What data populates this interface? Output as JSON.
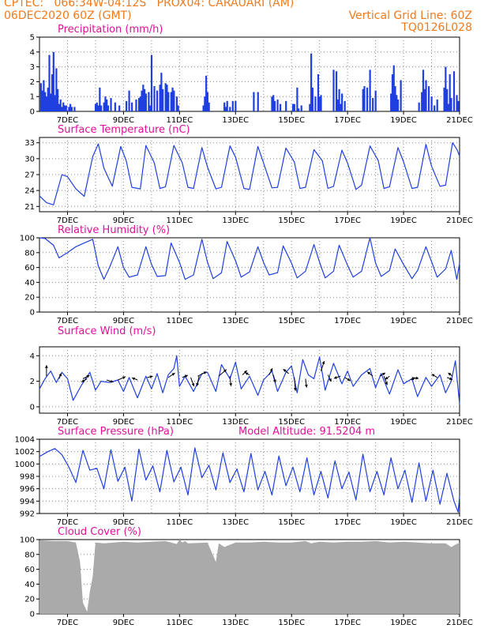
{
  "header": {
    "line1": "CPTEC:   066:34W-04:12S   PROX04: CARAUARI (AM)",
    "line2": "06DEC2020 60Z (GMT)",
    "grid_note": "Vertical Grid Line: 60Z",
    "code": "TQ0126L028"
  },
  "colors": {
    "header": "#f07a1e",
    "title": "#e0109a",
    "series": "#1f3fe0",
    "cloud": "#aaaaaa",
    "arrow": "#000000"
  },
  "model_altitude_label": "Model Altitude: 91.5204 m",
  "x_axis": {
    "start_day": 6,
    "end_day": 21,
    "tick_days": [
      7,
      9,
      11,
      13,
      15,
      17,
      19,
      21
    ],
    "tick_labels": [
      "7DEC",
      "9DEC",
      "11DEC",
      "13DEC",
      "15DEC",
      "17DEC",
      "19DEC",
      "21DEC"
    ]
  },
  "chart_data": [
    {
      "id": "precip",
      "type": "bar",
      "title": "Precipitation (mm/h)",
      "ylim": [
        0,
        5
      ],
      "yticks": [
        0,
        1,
        2,
        3,
        4,
        5
      ],
      "grid": true,
      "x": [
        6.05,
        6.1,
        6.15,
        6.2,
        6.25,
        6.3,
        6.35,
        6.4,
        6.45,
        6.5,
        6.55,
        6.6,
        6.65,
        6.7,
        6.75,
        6.8,
        6.85,
        6.9,
        6.95,
        7.05,
        7.1,
        7.15,
        7.25,
        8.0,
        8.05,
        8.1,
        8.15,
        8.2,
        8.3,
        8.35,
        8.4,
        8.45,
        8.55,
        8.7,
        8.85,
        9.1,
        9.2,
        9.3,
        9.45,
        9.55,
        9.6,
        9.65,
        9.7,
        9.75,
        9.8,
        9.9,
        9.95,
        10.0,
        10.1,
        10.2,
        10.3,
        10.35,
        10.4,
        10.5,
        10.55,
        10.6,
        10.7,
        10.75,
        10.8,
        10.9,
        10.95,
        11.85,
        11.9,
        11.95,
        12.0,
        12.05,
        12.6,
        12.65,
        12.7,
        12.8,
        12.9,
        13.0,
        13.65,
        13.8,
        14.3,
        14.35,
        14.4,
        14.5,
        14.6,
        14.8,
        15.05,
        15.1,
        15.2,
        15.25,
        15.35,
        15.65,
        15.7,
        15.75,
        15.85,
        15.95,
        16.0,
        16.05,
        16.5,
        16.6,
        16.65,
        16.7,
        16.75,
        16.8,
        16.9,
        17.55,
        17.6,
        17.7,
        17.8,
        17.9,
        18.0,
        18.55,
        18.6,
        18.65,
        18.7,
        18.75,
        18.8,
        18.9,
        19.55,
        19.65,
        19.7,
        19.75,
        19.8,
        19.9,
        20.0,
        20.1,
        20.2,
        20.45,
        20.5,
        20.55,
        20.6,
        20.65,
        20.7,
        20.8,
        20.9,
        20.95
      ],
      "y": [
        1.9,
        1.4,
        2.1,
        1.3,
        1.0,
        1.6,
        3.8,
        1.2,
        2.5,
        4.0,
        1.1,
        2.9,
        1.5,
        0.5,
        0.8,
        0.3,
        0.6,
        0.4,
        0.4,
        0.3,
        0.5,
        0.3,
        0.3,
        0.5,
        0.6,
        0.4,
        1.6,
        0.4,
        0.6,
        1.0,
        0.8,
        0.4,
        0.9,
        0.6,
        0.4,
        0.7,
        1.4,
        0.6,
        0.8,
        0.9,
        1.0,
        1.4,
        1.8,
        1.5,
        1.2,
        1.3,
        0.4,
        3.8,
        1.7,
        1.4,
        1.8,
        2.6,
        1.5,
        1.9,
        1.8,
        1.3,
        1.3,
        1.6,
        1.4,
        1.0,
        0.4,
        0.4,
        1.0,
        2.4,
        1.3,
        0.6,
        0.6,
        0.3,
        0.7,
        0.3,
        0.7,
        0.7,
        1.3,
        1.3,
        1.0,
        1.1,
        0.7,
        0.8,
        0.5,
        0.7,
        0.5,
        0.5,
        1.6,
        0.2,
        0.4,
        0.5,
        3.9,
        1.6,
        1.0,
        2.5,
        1.0,
        1.1,
        2.8,
        2.7,
        0.8,
        1.5,
        0.5,
        1.2,
        0.7,
        1.5,
        1.7,
        1.6,
        2.8,
        0.9,
        1.4,
        1.2,
        2.5,
        3.1,
        1.7,
        1.1,
        0.8,
        2.1,
        0.6,
        1.3,
        2.8,
        1.5,
        2.1,
        1.7,
        1.0,
        0.4,
        0.8,
        1.6,
        3.0,
        1.5,
        0.5,
        2.5,
        0.9,
        2.7,
        1.1,
        0.7
      ]
    },
    {
      "id": "temp",
      "type": "line",
      "title": "Surface Temperature (nC)",
      "ylim": [
        20,
        34
      ],
      "yticks": [
        21,
        24,
        27,
        30,
        33
      ],
      "grid": true,
      "x": [
        6.0,
        6.25,
        6.5,
        6.8,
        7.0,
        7.3,
        7.6,
        7.9,
        8.1,
        8.3,
        8.6,
        8.9,
        9.1,
        9.3,
        9.6,
        9.8,
        10.1,
        10.3,
        10.5,
        10.8,
        11.1,
        11.3,
        11.5,
        11.8,
        12.0,
        12.3,
        12.5,
        12.8,
        13.0,
        13.3,
        13.5,
        13.8,
        14.0,
        14.3,
        14.5,
        14.8,
        15.1,
        15.3,
        15.5,
        15.8,
        16.1,
        16.3,
        16.5,
        16.8,
        17.0,
        17.3,
        17.5,
        17.8,
        18.1,
        18.3,
        18.5,
        18.8,
        19.0,
        19.3,
        19.5,
        19.8,
        20.0,
        20.3,
        20.5,
        20.75,
        20.9,
        21.0
      ],
      "y": [
        23.0,
        21.7,
        21.3,
        27.0,
        26.6,
        24.3,
        22.9,
        30.4,
        32.8,
        28.2,
        24.8,
        32.3,
        29.6,
        24.6,
        24.3,
        32.5,
        29.2,
        24.4,
        24.7,
        32.5,
        29.2,
        24.6,
        24.4,
        32.1,
        28.4,
        24.3,
        24.6,
        32.4,
        30.3,
        24.4,
        24.2,
        32.3,
        29.2,
        24.5,
        24.6,
        32.0,
        29.4,
        24.4,
        24.6,
        31.7,
        29.6,
        24.4,
        24.8,
        31.6,
        29.2,
        24.2,
        25.0,
        32.4,
        29.6,
        24.4,
        24.7,
        32.1,
        29.4,
        24.4,
        24.6,
        32.7,
        28.6,
        24.8,
        25.0,
        33.0,
        31.8,
        30.5
      ]
    },
    {
      "id": "rh",
      "type": "line",
      "title": "Relative Humidity (%)",
      "ylim": [
        0,
        100
      ],
      "yticks": [
        0,
        20,
        40,
        60,
        80,
        100
      ],
      "grid": true,
      "x": [
        6.0,
        6.2,
        6.5,
        6.7,
        7.0,
        7.3,
        7.6,
        7.9,
        8.1,
        8.3,
        8.5,
        8.8,
        9.0,
        9.2,
        9.5,
        9.8,
        10.0,
        10.2,
        10.5,
        10.7,
        11.0,
        11.2,
        11.5,
        11.8,
        12.0,
        12.2,
        12.5,
        12.7,
        13.0,
        13.2,
        13.5,
        13.8,
        14.0,
        14.2,
        14.5,
        14.7,
        15.0,
        15.2,
        15.5,
        15.8,
        16.0,
        16.2,
        16.5,
        16.7,
        17.0,
        17.2,
        17.5,
        17.8,
        18.0,
        18.2,
        18.5,
        18.7,
        19.0,
        19.3,
        19.5,
        19.8,
        20.0,
        20.2,
        20.5,
        20.7,
        20.9,
        21.0
      ],
      "y": [
        100,
        99,
        90,
        73,
        80,
        88,
        93,
        98,
        62,
        44,
        60,
        88,
        60,
        47,
        50,
        88,
        64,
        48,
        49,
        93,
        67,
        44,
        50,
        98,
        67,
        45,
        53,
        95,
        69,
        47,
        54,
        88,
        67,
        50,
        53,
        89,
        66,
        46,
        55,
        91,
        67,
        46,
        55,
        90,
        63,
        47,
        55,
        100,
        66,
        48,
        56,
        85,
        64,
        45,
        56,
        88,
        68,
        47,
        58,
        83,
        44,
        66
      ]
    },
    {
      "id": "wind",
      "type": "line",
      "title": "Surface Wind (m/s)",
      "ylim": [
        -0.5,
        4.7
      ],
      "yticks": [
        0,
        2,
        4
      ],
      "grid": true,
      "x": [
        6.0,
        6.2,
        6.4,
        6.6,
        6.8,
        7.0,
        7.2,
        7.5,
        7.8,
        8.0,
        8.2,
        8.5,
        8.8,
        9.0,
        9.2,
        9.5,
        9.8,
        10.0,
        10.2,
        10.4,
        10.6,
        10.8,
        10.9,
        11.0,
        11.2,
        11.5,
        11.8,
        12.0,
        12.3,
        12.5,
        12.8,
        13.0,
        13.2,
        13.5,
        13.8,
        14.0,
        14.3,
        14.5,
        14.8,
        15.0,
        15.2,
        15.4,
        15.6,
        15.8,
        16.0,
        16.2,
        16.5,
        16.8,
        17.0,
        17.2,
        17.5,
        17.8,
        18.0,
        18.2,
        18.5,
        18.8,
        19.0,
        19.3,
        19.5,
        19.8,
        20.0,
        20.3,
        20.5,
        20.7,
        20.85,
        21.0
      ],
      "y": [
        1.4,
        2.2,
        2.8,
        1.9,
        2.7,
        2.2,
        0.5,
        1.7,
        2.7,
        1.3,
        2.0,
        1.9,
        2.1,
        1.2,
        2.3,
        0.7,
        2.4,
        1.4,
        2.6,
        1.1,
        2.5,
        3.0,
        4.0,
        1.6,
        2.4,
        1.2,
        2.6,
        2.7,
        1.2,
        3.3,
        2.2,
        3.5,
        1.4,
        2.4,
        0.9,
        2.1,
        2.8,
        1.2,
        2.7,
        3.2,
        1.1,
        3.7,
        2.5,
        2.2,
        3.9,
        1.3,
        3.4,
        1.8,
        2.8,
        1.6,
        2.5,
        3.0,
        1.5,
        2.6,
        1.0,
        2.9,
        1.8,
        2.2,
        0.8,
        2.3,
        1.6,
        2.5,
        1.1,
        2.0,
        3.6,
        0.2
      ],
      "arrows": [
        {
          "x": 6.25,
          "y": 2.4,
          "u": 0.0,
          "v": 1.0
        },
        {
          "x": 6.7,
          "y": 2.2,
          "u": 0.2,
          "v": 0.5
        },
        {
          "x": 7.55,
          "y": 2.2,
          "u": 0.6,
          "v": 0.3
        },
        {
          "x": 7.7,
          "y": 2.2,
          "u": -0.5,
          "v": -0.3
        },
        {
          "x": 8.4,
          "y": 2.1,
          "u": 0.6,
          "v": -0.2
        },
        {
          "x": 8.8,
          "y": 2.1,
          "u": 0.7,
          "v": 0.3
        },
        {
          "x": 9.5,
          "y": 2.1,
          "u": -0.5,
          "v": 0.2
        },
        {
          "x": 9.85,
          "y": 2.3,
          "u": 0.5,
          "v": 0.1
        },
        {
          "x": 10.6,
          "y": 2.3,
          "u": 0.6,
          "v": 0.4
        },
        {
          "x": 11.1,
          "y": 2.3,
          "u": 0.5,
          "v": 0.2
        },
        {
          "x": 11.4,
          "y": 2.3,
          "u": 0.3,
          "v": -0.8
        },
        {
          "x": 11.65,
          "y": 2.4,
          "u": 0.8,
          "v": 0.4
        },
        {
          "x": 11.7,
          "y": 2.4,
          "u": -0.2,
          "v": -0.9
        },
        {
          "x": 12.4,
          "y": 2.4,
          "u": 0.7,
          "v": 0.6
        },
        {
          "x": 12.8,
          "y": 2.4,
          "u": 0.1,
          "v": -0.9
        },
        {
          "x": 13.25,
          "y": 2.5,
          "u": 0.4,
          "v": 0.4
        },
        {
          "x": 13.5,
          "y": 2.5,
          "u": -0.4,
          "v": 0.2
        },
        {
          "x": 14.2,
          "y": 2.5,
          "u": 0.3,
          "v": 0.6
        },
        {
          "x": 14.35,
          "y": 2.5,
          "u": 0.2,
          "v": -0.7
        },
        {
          "x": 14.9,
          "y": 2.6,
          "u": -0.5,
          "v": 0.4
        },
        {
          "x": 15.1,
          "y": 2.3,
          "u": 0.1,
          "v": -1.2
        },
        {
          "x": 15.5,
          "y": 2.2,
          "u": 0.1,
          "v": -0.8
        },
        {
          "x": 16.05,
          "y": 2.8,
          "u": 0.3,
          "v": 0.9
        },
        {
          "x": 16.3,
          "y": 2.5,
          "u": 0.3,
          "v": -0.6
        },
        {
          "x": 16.75,
          "y": 2.4,
          "u": -0.6,
          "v": -0.2
        },
        {
          "x": 16.9,
          "y": 2.3,
          "u": 0.5,
          "v": -0.3
        },
        {
          "x": 17.9,
          "y": 2.4,
          "u": -0.5,
          "v": 0.4
        },
        {
          "x": 18.15,
          "y": 2.4,
          "u": 0.5,
          "v": 0.3
        },
        {
          "x": 18.3,
          "y": 2.4,
          "u": 0.3,
          "v": -0.8
        },
        {
          "x": 18.5,
          "y": 2.4,
          "u": -0.4,
          "v": -0.3
        },
        {
          "x": 19.3,
          "y": 2.3,
          "u": 0.6,
          "v": -0.1
        },
        {
          "x": 19.5,
          "y": 2.3,
          "u": -0.6,
          "v": -0.2
        },
        {
          "x": 20.2,
          "y": 2.3,
          "u": -0.5,
          "v": 0.3
        },
        {
          "x": 20.55,
          "y": 2.3,
          "u": 0.5,
          "v": -0.2
        },
        {
          "x": 20.75,
          "y": 2.4,
          "u": -0.4,
          "v": 0.3
        }
      ]
    },
    {
      "id": "pressure",
      "type": "line",
      "title": "Surface Pressure (hPa)",
      "ylim": [
        992,
        1004
      ],
      "yticks": [
        992,
        994,
        996,
        998,
        1000,
        1002,
        1004
      ],
      "grid": true,
      "x": [
        6.0,
        6.3,
        6.55,
        6.8,
        7.05,
        7.3,
        7.55,
        7.8,
        8.05,
        8.3,
        8.55,
        8.8,
        9.05,
        9.3,
        9.55,
        9.8,
        10.05,
        10.3,
        10.55,
        10.8,
        11.05,
        11.3,
        11.55,
        11.8,
        12.05,
        12.3,
        12.55,
        12.8,
        13.05,
        13.3,
        13.55,
        13.8,
        14.05,
        14.3,
        14.55,
        14.8,
        15.05,
        15.3,
        15.55,
        15.8,
        16.05,
        16.3,
        16.55,
        16.8,
        17.05,
        17.3,
        17.55,
        17.8,
        18.05,
        18.3,
        18.55,
        18.8,
        19.05,
        19.3,
        19.55,
        19.8,
        20.05,
        20.3,
        20.55,
        20.8,
        20.95,
        21.0
      ],
      "y": [
        1001.2,
        1002.0,
        1002.5,
        1001.5,
        999.5,
        997.0,
        1002.2,
        999.0,
        999.3,
        996.0,
        1002.3,
        997.2,
        999.5,
        994.0,
        1002.4,
        997.4,
        999.7,
        995.5,
        1002.2,
        997.1,
        999.5,
        995.0,
        1002.6,
        997.8,
        999.8,
        995.8,
        1001.8,
        997.0,
        999.2,
        995.5,
        1001.7,
        995.8,
        998.8,
        995.0,
        1001.3,
        996.5,
        999.5,
        995.5,
        1001.0,
        995.0,
        998.8,
        994.5,
        1000.5,
        996.0,
        998.7,
        994.2,
        1001.6,
        995.5,
        998.8,
        995.0,
        1001.0,
        996.0,
        999.0,
        993.8,
        1000.2,
        994.0,
        999.0,
        993.5,
        998.5,
        994.0,
        992.2,
        994.8
      ]
    },
    {
      "id": "cloud",
      "type": "area",
      "title": "Cloud Cover (%)",
      "ylim": [
        0,
        100
      ],
      "yticks": [
        0,
        20,
        40,
        60,
        80,
        100
      ],
      "grid": true,
      "x": [
        6.0,
        6.5,
        7.0,
        7.3,
        7.45,
        7.55,
        7.7,
        7.8,
        7.9,
        8.0,
        8.3,
        9.0,
        9.5,
        10.0,
        10.5,
        10.9,
        11.0,
        11.1,
        11.2,
        11.3,
        12.0,
        12.3,
        12.4,
        12.6,
        13.0,
        13.5,
        14.0,
        14.5,
        15.0,
        15.5,
        15.7,
        16.0,
        16.5,
        17.0,
        17.5,
        18.0,
        18.5,
        19.0,
        19.5,
        20.0,
        20.5,
        20.7,
        21.0
      ],
      "y": [
        99,
        98,
        98,
        96,
        70,
        15,
        3,
        30,
        50,
        96,
        95,
        97,
        96,
        97,
        98,
        94,
        100,
        96,
        98,
        95,
        96,
        70,
        95,
        90,
        96,
        96,
        97,
        96,
        96,
        98,
        95,
        97,
        96,
        97,
        97,
        98,
        96,
        97,
        96,
        95,
        95,
        90,
        96
      ]
    }
  ]
}
